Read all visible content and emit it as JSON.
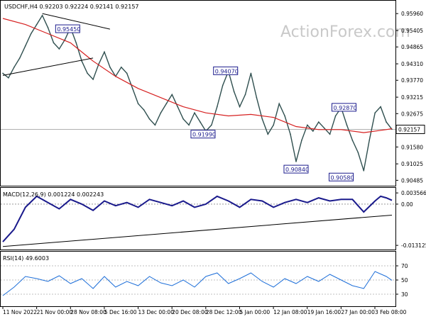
{
  "chart_data": {
    "type": "line",
    "title": "USDCHF,H4",
    "ohlc": [
      "0.92203",
      "0.92224",
      "0.92141",
      "0.92157"
    ],
    "watermark": "ActionForex.com",
    "current_price": 0.92157,
    "price_axis": {
      "ticks": [
        "0.95960",
        "0.95405",
        "0.94865",
        "0.94310",
        "0.93770",
        "0.93215",
        "0.92675",
        "0.92135",
        "0.91580",
        "0.91025",
        "0.90485"
      ],
      "ylim": [
        0.904,
        0.9622
      ]
    },
    "x_axis": {
      "ticks": [
        "11 Nov 2022",
        "21 Nov 00:00",
        "28 Nov 08:00",
        "5 Dec 16:00",
        "13 Dec 00:00",
        "20 Dec 08:00",
        "28 Dec 12:00",
        "5 Jan 00:00",
        "12 Jan 08:00",
        "19 Jan 16:00",
        "27 Jan 00:00",
        "3 Feb 08:00"
      ]
    },
    "price_labels": [
      {
        "text": "0.95450",
        "x": 23,
        "y": 0.9545
      },
      {
        "text": "0.94070",
        "x": 79,
        "y": 0.9407
      },
      {
        "text": "0.92870",
        "x": 121,
        "y": 0.9287
      },
      {
        "text": "0.91990",
        "x": 71,
        "y": 0.9199
      },
      {
        "text": "0.90840",
        "x": 104,
        "y": 0.9084
      },
      {
        "text": "0.90580",
        "x": 120,
        "y": 0.9058
      }
    ],
    "series": [
      {
        "name": "USDCHF",
        "color": "#2f4f4f",
        "points": [
          [
            0,
            0.94
          ],
          [
            2,
            0.9385
          ],
          [
            4,
            0.942
          ],
          [
            6,
            0.945
          ],
          [
            8,
            0.949
          ],
          [
            10,
            0.953
          ],
          [
            12,
            0.956
          ],
          [
            14,
            0.959
          ],
          [
            16,
            0.955
          ],
          [
            18,
            0.95
          ],
          [
            20,
            0.948
          ],
          [
            22,
            0.951
          ],
          [
            24,
            0.955
          ],
          [
            26,
            0.95
          ],
          [
            28,
            0.944
          ],
          [
            30,
            0.94
          ],
          [
            32,
            0.938
          ],
          [
            34,
            0.943
          ],
          [
            36,
            0.947
          ],
          [
            38,
            0.942
          ],
          [
            40,
            0.939
          ],
          [
            42,
            0.942
          ],
          [
            44,
            0.94
          ],
          [
            46,
            0.935
          ],
          [
            48,
            0.93
          ],
          [
            50,
            0.928
          ],
          [
            52,
            0.925
          ],
          [
            54,
            0.923
          ],
          [
            56,
            0.927
          ],
          [
            58,
            0.93
          ],
          [
            60,
            0.933
          ],
          [
            62,
            0.929
          ],
          [
            64,
            0.925
          ],
          [
            66,
            0.923
          ],
          [
            68,
            0.927
          ],
          [
            70,
            0.924
          ],
          [
            72,
            0.921
          ],
          [
            74,
            0.923
          ],
          [
            76,
            0.929
          ],
          [
            78,
            0.936
          ],
          [
            80,
            0.9407
          ],
          [
            82,
            0.934
          ],
          [
            84,
            0.929
          ],
          [
            86,
            0.933
          ],
          [
            88,
            0.94
          ],
          [
            90,
            0.932
          ],
          [
            92,
            0.925
          ],
          [
            94,
            0.92
          ],
          [
            96,
            0.923
          ],
          [
            98,
            0.93
          ],
          [
            100,
            0.926
          ],
          [
            102,
            0.92
          ],
          [
            104,
            0.911
          ],
          [
            106,
            0.918
          ],
          [
            108,
            0.923
          ],
          [
            110,
            0.921
          ],
          [
            112,
            0.924
          ],
          [
            114,
            0.922
          ],
          [
            116,
            0.92
          ],
          [
            118,
            0.926
          ],
          [
            120,
            0.9287
          ],
          [
            122,
            0.923
          ],
          [
            124,
            0.918
          ],
          [
            126,
            0.914
          ],
          [
            128,
            0.908
          ],
          [
            130,
            0.918
          ],
          [
            132,
            0.927
          ],
          [
            134,
            0.929
          ],
          [
            136,
            0.924
          ],
          [
            138,
            0.9216
          ]
        ]
      },
      {
        "name": "MA",
        "color": "#d62020",
        "points": [
          [
            0,
            0.958
          ],
          [
            8,
            0.956
          ],
          [
            16,
            0.953
          ],
          [
            24,
            0.95
          ],
          [
            32,
            0.944
          ],
          [
            40,
            0.939
          ],
          [
            48,
            0.935
          ],
          [
            56,
            0.932
          ],
          [
            64,
            0.929
          ],
          [
            72,
            0.927
          ],
          [
            80,
            0.926
          ],
          [
            88,
            0.9265
          ],
          [
            96,
            0.9255
          ],
          [
            104,
            0.9225
          ],
          [
            112,
            0.9215
          ],
          [
            120,
            0.9215
          ],
          [
            128,
            0.9205
          ],
          [
            136,
            0.9215
          ],
          [
            138,
            0.9218
          ]
        ]
      }
    ],
    "trendlines": [
      {
        "from": [
          0,
          0.9393
        ],
        "to": [
          32,
          0.945
        ]
      },
      {
        "from": [
          14,
          0.9596
        ],
        "to": [
          38,
          0.9545
        ]
      }
    ],
    "macd": {
      "label": "MACD(12,26,9) 0.001224 0.002243",
      "ticks": [
        "0.003566",
        "0.00",
        "-0.013125"
      ],
      "ylim": [
        -0.014,
        0.0045
      ],
      "values": [
        [
          0,
          -0.012
        ],
        [
          4,
          -0.008
        ],
        [
          8,
          -0.001
        ],
        [
          12,
          0.0025
        ],
        [
          16,
          0.0005
        ],
        [
          20,
          -0.0015
        ],
        [
          24,
          0.0015
        ],
        [
          28,
          0.0
        ],
        [
          32,
          -0.002
        ],
        [
          36,
          0.001
        ],
        [
          40,
          -0.0005
        ],
        [
          44,
          0.0005
        ],
        [
          48,
          -0.001
        ],
        [
          52,
          0.0015
        ],
        [
          56,
          0.0005
        ],
        [
          60,
          -0.0005
        ],
        [
          64,
          0.001
        ],
        [
          68,
          -0.001
        ],
        [
          72,
          0.0
        ],
        [
          76,
          0.0025
        ],
        [
          80,
          0.001
        ],
        [
          84,
          -0.001
        ],
        [
          88,
          0.0015
        ],
        [
          92,
          0.001
        ],
        [
          96,
          -0.001
        ],
        [
          100,
          0.0005
        ],
        [
          104,
          0.0015
        ],
        [
          108,
          0.0005
        ],
        [
          112,
          0.002
        ],
        [
          116,
          0.001
        ],
        [
          120,
          0.0015
        ],
        [
          124,
          0.0015
        ],
        [
          128,
          -0.0025
        ],
        [
          132,
          0.001
        ],
        [
          134,
          0.0025
        ],
        [
          136,
          0.002
        ],
        [
          138,
          0.0012
        ]
      ],
      "support": {
        "from": [
          0,
          -0.0135
        ],
        "to": [
          138,
          -0.0035
        ]
      }
    },
    "rsi": {
      "label": "RSI(14) 49.6003",
      "ticks": [
        "70",
        "50",
        "30"
      ],
      "ylim": [
        15,
        85
      ],
      "values": [
        [
          0,
          28
        ],
        [
          4,
          40
        ],
        [
          8,
          55
        ],
        [
          12,
          52
        ],
        [
          16,
          48
        ],
        [
          20,
          56
        ],
        [
          24,
          45
        ],
        [
          28,
          52
        ],
        [
          32,
          38
        ],
        [
          36,
          55
        ],
        [
          40,
          40
        ],
        [
          44,
          48
        ],
        [
          48,
          42
        ],
        [
          52,
          55
        ],
        [
          56,
          46
        ],
        [
          60,
          42
        ],
        [
          64,
          50
        ],
        [
          68,
          40
        ],
        [
          72,
          55
        ],
        [
          76,
          60
        ],
        [
          80,
          45
        ],
        [
          84,
          52
        ],
        [
          88,
          60
        ],
        [
          92,
          48
        ],
        [
          96,
          40
        ],
        [
          100,
          52
        ],
        [
          104,
          45
        ],
        [
          108,
          55
        ],
        [
          112,
          48
        ],
        [
          116,
          58
        ],
        [
          120,
          50
        ],
        [
          124,
          42
        ],
        [
          128,
          38
        ],
        [
          132,
          62
        ],
        [
          136,
          55
        ],
        [
          138,
          49.6
        ]
      ]
    }
  }
}
